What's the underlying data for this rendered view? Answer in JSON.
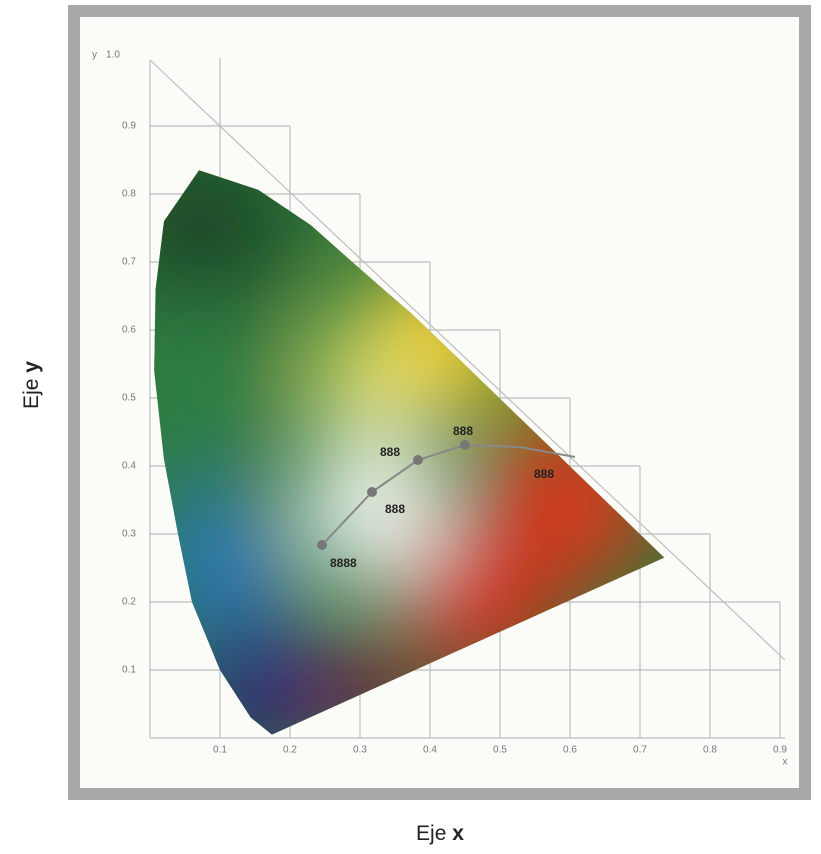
{
  "axes": {
    "y_title_prefix": "Eje",
    "y_title_symbol": "y",
    "x_title_prefix": "Eje",
    "x_title_symbol": "x",
    "y_corner": "y",
    "y_top": "1.0",
    "x_corner": "x"
  },
  "x_ticks": [
    "0.1",
    "0.2",
    "0.3",
    "0.4",
    "0.5",
    "0.6",
    "0.7",
    "0.8",
    "0.9"
  ],
  "y_ticks": [
    "0.9",
    "0.8",
    "0.7",
    "0.6",
    "0.5",
    "0.4",
    "0.3",
    "0.2",
    "0.1"
  ],
  "point_labels": [
    "888",
    "888",
    "888",
    "888",
    "8888"
  ]
}
